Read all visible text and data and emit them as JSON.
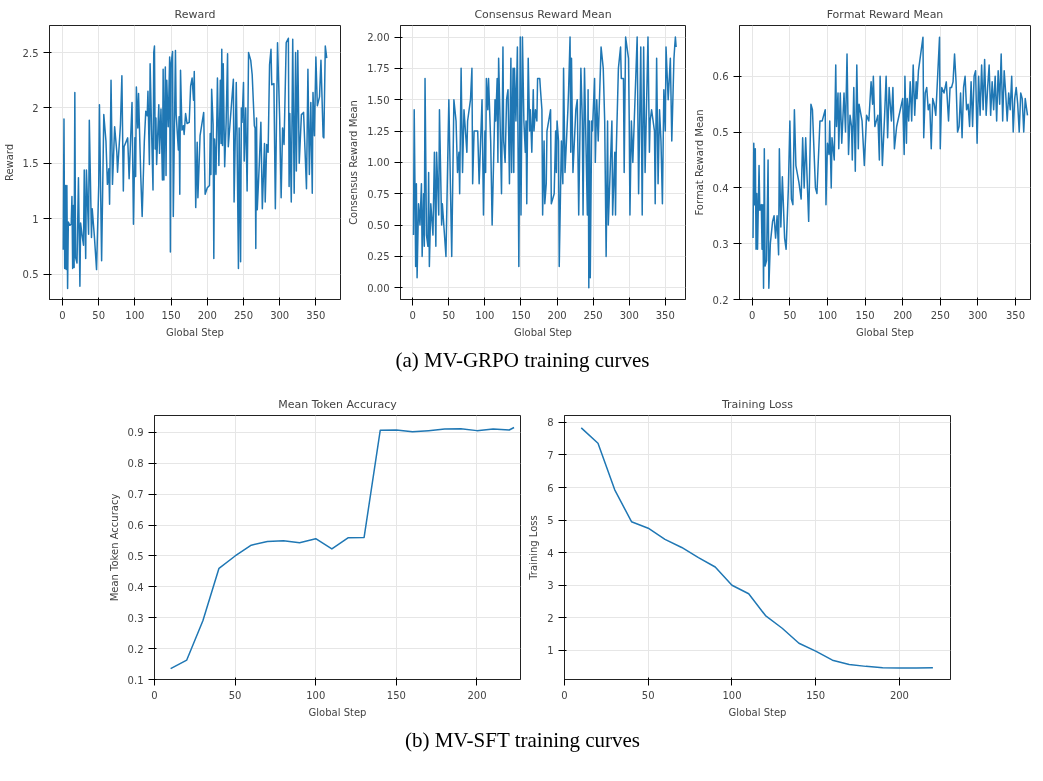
{
  "chart_data": [
    {
      "type": "line",
      "title": "Reward",
      "xlabel": "Global Step",
      "ylabel": "Reward",
      "grid": true,
      "xlim": [
        -18,
        384
      ],
      "ylim": [
        0.27,
        2.745
      ],
      "xticks": [
        0,
        50,
        100,
        150,
        200,
        250,
        300,
        350
      ],
      "yticks": [
        0.5,
        1.0,
        1.5,
        2.0,
        2.5
      ],
      "x": [
        1,
        2,
        3,
        4,
        5,
        6,
        7,
        8,
        10,
        12,
        13,
        14,
        15,
        16,
        17,
        18,
        20,
        22,
        24,
        25,
        27,
        29,
        30,
        32,
        33,
        36,
        37,
        40,
        41,
        44,
        47,
        50,
        51,
        54,
        57,
        60,
        62,
        64,
        65,
        67,
        69,
        72,
        75,
        76,
        80,
        82,
        84,
        85,
        90,
        92,
        96,
        98,
        100,
        101,
        102,
        104,
        105,
        108,
        110,
        113,
        115,
        117,
        118,
        120,
        121,
        123,
        125,
        126,
        127,
        128,
        129,
        130,
        133,
        134,
        136,
        138,
        139,
        140,
        142,
        143,
        144,
        146,
        148,
        149,
        150,
        152,
        153,
        156,
        157,
        160,
        161,
        162,
        163,
        165,
        167,
        168,
        170,
        172,
        175,
        177,
        179,
        181,
        182,
        184,
        186,
        187,
        190,
        195,
        197,
        200,
        203,
        204,
        205,
        206,
        208,
        209,
        210,
        212,
        214,
        216,
        218,
        219,
        220,
        221,
        222,
        224,
        226,
        228,
        229,
        233,
        236,
        237,
        240,
        241,
        243,
        244,
        246,
        247,
        248,
        250,
        251,
        253,
        255,
        257,
        260,
        262,
        265,
        266,
        267,
        268,
        269,
        272,
        274,
        276,
        279,
        280,
        282,
        284,
        286,
        288,
        289,
        292,
        294,
        297,
        300,
        302,
        304,
        306,
        309,
        312,
        313,
        314,
        316,
        318,
        320,
        322,
        323,
        325,
        327,
        330,
        333,
        337,
        339,
        341,
        343,
        345,
        346,
        348,
        350,
        352,
        355,
        357,
        360,
        361,
        363,
        365
      ],
      "series": [
        {
          "color": "#1f77b4",
          "values": [
            0.72,
            1.9,
            0.55,
            1.3,
            0.54,
            1.3,
            0.37,
            0.97,
            0.94,
            0.95,
            1.2,
            0.55,
            1.12,
            0.56,
            2.14,
            0.65,
            0.6,
            1.37,
            0.39,
            0.96,
            0.85,
            0.76,
            1.44,
            0.64,
            1.44,
            0.86,
            1.89,
            0.83,
            1.09,
            0.84,
            0.54,
            1.3,
            2.03,
            0.62,
            1.94,
            1.7,
            1.31,
            1.45,
            1.13,
            2.25,
            1.31,
            1.83,
            1.6,
            1.42,
            1.85,
            2.29,
            1.25,
            1.65,
            1.73,
            1.36,
            2.05,
            0.95,
            1.73,
            1.38,
            2.19,
            1.82,
            2.13,
            1.4,
            1.02,
            1.7,
            1.97,
            1.93,
            2.15,
            1.49,
            2.4,
            1.8,
            1.26,
            2.5,
            2.56,
            1.63,
            1.91,
            1.49,
            2.03,
            1.59,
            1.99,
            1.35,
            2.35,
            1.35,
            2.37,
            1.39,
            2.25,
            1.83,
            2.46,
            0.7,
            2.4,
            2.51,
            1.02,
            2.52,
            1.94,
            1.62,
            1.92,
            1.22,
            2.34,
            1.8,
            1.84,
            1.76,
            1.95,
            1.86,
            1.87,
            2.2,
            2.27,
            2.07,
            2.33,
            1.1,
            1.69,
            1.19,
            1.75,
            1.96,
            1.22,
            1.28,
            1.3,
            1.77,
            1.4,
            2.17,
            1.85,
            0.64,
            1.72,
            1.4,
            2.27,
            1.48,
            2.25,
            1.68,
            2.53,
            1.66,
            2.4,
            1.47,
            1.87,
            2.49,
            1.65,
            2.0,
            2.26,
            1.15,
            2.23,
            1.78,
            0.55,
            1.82,
            0.61,
            2.0,
            1.87,
            2.23,
            1.52,
            2.0,
            1.25,
            2.5,
            2.43,
            2.3,
            1.84,
            1.82,
            0.73,
            1.91,
            1.08,
            1.52,
            1.87,
            1.09,
            1.68,
            1.15,
            1.67,
            1.6,
            2.39,
            2.53,
            2.21,
            2.22,
            1.09,
            2.59,
            1.9,
            1.19,
            1.82,
            1.67,
            2.59,
            2.63,
            1.29,
            1.95,
            1.15,
            2.62,
            1.23,
            2.5,
            1.43,
            2.52,
            1.5,
            1.94,
            1.96,
            1.27,
            2.35,
            1.4,
            2.05,
            1.23,
            2.14,
            1.75,
            2.46,
            2.02,
            2.1,
            2.43,
            1.74,
            1.73,
            2.56,
            2.45
          ]
        }
      ]
    },
    {
      "type": "line",
      "title": "Consensus Reward Mean",
      "xlabel": "Global Step",
      "ylabel": "Consensus Reward Mean",
      "grid": true,
      "xlim": [
        -17,
        378
      ],
      "ylim": [
        -0.094,
        2.092
      ],
      "xticks": [
        0,
        50,
        100,
        150,
        200,
        250,
        300,
        350
      ],
      "yticks": [
        {
          "value": 0,
          "label": "0.00"
        },
        0.25,
        {
          "value": 0.5,
          "label": "0.50"
        },
        0.75,
        {
          "value": 1,
          "label": "1.00"
        },
        1.25,
        {
          "value": 1.5,
          "label": "1.50"
        },
        1.75,
        {
          "value": 2,
          "label": "2.00"
        }
      ],
      "annotations": [
        "(a) MV-GRPO training curves"
      ],
      "x": [
        1,
        2,
        3,
        4,
        5,
        6,
        8,
        10,
        12,
        13,
        15,
        16,
        17,
        19,
        21,
        22,
        23,
        25,
        28,
        30,
        32,
        33,
        36,
        37,
        40,
        41,
        46,
        50,
        54,
        57,
        60,
        62,
        64,
        65,
        67,
        69,
        71,
        75,
        76,
        80,
        82,
        83,
        85,
        90,
        92,
        96,
        98,
        100,
        101,
        102,
        104,
        105,
        108,
        110,
        114,
        115,
        117,
        118,
        119,
        121,
        123,
        125,
        126,
        128,
        130,
        132,
        134,
        136,
        137,
        139,
        140,
        141,
        143,
        145,
        147,
        149,
        150,
        152,
        154,
        156,
        157,
        158,
        160,
        162,
        163,
        165,
        167,
        168,
        170,
        172,
        173,
        176,
        177,
        179,
        180,
        182,
        183,
        185,
        186,
        191,
        192,
        196,
        198,
        199,
        200,
        202,
        203,
        206,
        208,
        209,
        211,
        215,
        216,
        218,
        219,
        220,
        222,
        226,
        228,
        230,
        233,
        235,
        236,
        238,
        242,
        243,
        244,
        245,
        246,
        248,
        249,
        252,
        253,
        255,
        257,
        261,
        264,
        266,
        268,
        270,
        271,
        274,
        276,
        277,
        280,
        281,
        282,
        285,
        288,
        289,
        292,
        293,
        295,
        299,
        300,
        301,
        303,
        305,
        308,
        311,
        313,
        316,
        318,
        320,
        322,
        326,
        328,
        329,
        331,
        335,
        336,
        338,
        340,
        342,
        344,
        346,
        348,
        350,
        351,
        354,
        357,
        359,
        362,
        363,
        364,
        365
      ],
      "series": [
        {
          "color": "#1f77b4",
          "values": [
            0.42,
            1.42,
            0.83,
            0.17,
            0.83,
            0.08,
            0.67,
            0.5,
            0.83,
            0.25,
            0.75,
            0.33,
            1.67,
            0.42,
            0.33,
            0.92,
            0.17,
            0.67,
            0.42,
            1.08,
            0.33,
            1.08,
            0.58,
            1.42,
            0.5,
            0.67,
            0.25,
            1.5,
            0.25,
            1.5,
            1.33,
            0.92,
            1.08,
            0.75,
            1.75,
            0.92,
            1.42,
            1.08,
            1.33,
            1.5,
            1.75,
            0.83,
            1.25,
            1.25,
            0.83,
            1.5,
            0.58,
            1.25,
            0.92,
            1.67,
            1.42,
            1.67,
            1.17,
            0.5,
            1.5,
            1.33,
            1.67,
            1.0,
            1.83,
            1.33,
            0.75,
            1.92,
            1.17,
            1.0,
            1.5,
            1.58,
            0.83,
            1.83,
            0.92,
            1.75,
            0.92,
            1.75,
            1.33,
            1.92,
            0.17,
            2.0,
            0.58,
            2.0,
            1.33,
            1.08,
            1.33,
            0.67,
            1.83,
            1.25,
            1.42,
            1.08,
            1.58,
            1.25,
            1.42,
            1.33,
            1.67,
            1.67,
            1.58,
            1.42,
            0.58,
            1.17,
            0.67,
            0.83,
            1.25,
            1.42,
            0.67,
            0.75,
            1.25,
            0.92,
            1.33,
            1.17,
            0.17,
            1.17,
            0.83,
            1.75,
            0.92,
            1.42,
            1.58,
            2.0,
            1.08,
            1.83,
            0.92,
            1.42,
            1.5,
            0.58,
            1.75,
            1.33,
            0.58,
            1.75,
            0.58,
            1.58,
            0.0,
            1.33,
            0.08,
            1.33,
            1.25,
            1.67,
            1.0,
            1.5,
            1.17,
            1.92,
            1.75,
            1.33,
            0.25,
            1.33,
            0.5,
            1.0,
            1.33,
            0.58,
            1.08,
            0.58,
            1.08,
            1.75,
            1.92,
            1.67,
            1.67,
            0.92,
            2.0,
            1.83,
            1.33,
            0.58,
            1.33,
            1.0,
            1.5,
            2.0,
            0.75,
            1.92,
            0.58,
            1.92,
            0.92,
            2.0,
            1.08,
            1.33,
            1.42,
            1.25,
            0.67,
            1.83,
            0.83,
            1.42,
            1.17,
            0.67,
            1.58,
            1.25,
            1.92,
            1.5,
            1.83,
            1.17,
            1.83,
            1.92,
            2.0,
            1.92
          ]
        }
      ]
    },
    {
      "type": "line",
      "title": "Format Reward Mean",
      "xlabel": "Global Step",
      "ylabel": "Format Reward Mean",
      "grid": true,
      "xlim": [
        -17,
        370
      ],
      "ylim": [
        0.2,
        0.691
      ],
      "xticks": [
        0,
        50,
        100,
        150,
        200,
        250,
        300,
        350
      ],
      "yticks": [
        0.2,
        0.3,
        0.4,
        0.5,
        0.6
      ],
      "x": [
        1,
        2,
        3,
        4,
        5,
        6,
        7,
        9,
        10,
        12,
        13,
        14,
        15,
        16,
        17,
        19,
        21,
        22,
        24,
        27,
        29,
        31,
        33,
        35,
        36,
        38,
        40,
        43,
        45,
        48,
        50,
        52,
        54,
        56,
        58,
        62,
        65,
        67,
        69,
        71,
        75,
        78,
        80,
        84,
        86,
        90,
        93,
        97,
        98,
        100,
        102,
        103,
        105,
        106,
        109,
        111,
        112,
        114,
        115,
        117,
        119,
        122,
        124,
        126,
        128,
        130,
        132,
        133,
        135,
        137,
        139,
        141,
        142,
        146,
        149,
        152,
        155,
        158,
        160,
        161,
        163,
        167,
        169,
        170,
        173,
        176,
        178,
        180,
        182,
        185,
        187,
        189,
        192,
        200,
        202,
        203,
        205,
        206,
        208,
        210,
        212,
        214,
        216,
        218,
        219,
        221,
        227,
        228,
        230,
        232,
        234,
        236,
        238,
        240,
        242,
        244,
        249,
        250,
        252,
        255,
        258,
        261,
        263,
        265,
        267,
        269,
        271,
        273,
        275,
        277,
        279,
        281,
        283,
        285,
        287,
        289,
        291,
        293,
        295,
        297,
        299,
        301,
        303,
        305,
        307,
        309,
        311,
        313,
        315,
        317,
        319,
        321,
        323,
        325,
        327,
        329,
        331,
        333,
        335,
        337,
        339,
        341,
        343,
        345,
        347,
        349,
        351,
        353,
        355,
        357,
        359,
        361,
        363,
        366
      ],
      "series": [
        {
          "color": "#1f77b4",
          "values": [
            0.31,
            0.48,
            0.37,
            0.47,
            0.29,
            0.39,
            0.29,
            0.44,
            0.36,
            0.37,
            0.29,
            0.37,
            0.22,
            0.47,
            0.26,
            0.27,
            0.45,
            0.22,
            0.3,
            0.34,
            0.35,
            0.31,
            0.35,
            0.28,
            0.47,
            0.33,
            0.42,
            0.31,
            0.29,
            0.4,
            0.52,
            0.38,
            0.37,
            0.54,
            0.44,
            0.41,
            0.38,
            0.49,
            0.4,
            0.49,
            0.34,
            0.55,
            0.54,
            0.4,
            0.39,
            0.52,
            0.52,
            0.54,
            0.37,
            0.48,
            0.46,
            0.52,
            0.4,
            0.49,
            0.45,
            0.62,
            0.51,
            0.57,
            0.47,
            0.57,
            0.48,
            0.57,
            0.5,
            0.64,
            0.46,
            0.53,
            0.51,
            0.45,
            0.58,
            0.43,
            0.62,
            0.47,
            0.55,
            0.52,
            0.44,
            0.53,
            0.52,
            0.59,
            0.55,
            0.6,
            0.51,
            0.53,
            0.45,
            0.6,
            0.44,
            0.53,
            0.6,
            0.49,
            0.58,
            0.52,
            0.58,
            0.47,
            0.51,
            0.56,
            0.46,
            0.6,
            0.48,
            0.56,
            0.52,
            0.59,
            0.52,
            0.62,
            0.53,
            0.59,
            0.56,
            0.61,
            0.67,
            0.49,
            0.57,
            0.58,
            0.54,
            0.55,
            0.47,
            0.56,
            0.55,
            0.53,
            0.67,
            0.47,
            0.58,
            0.57,
            0.59,
            0.52,
            0.58,
            0.58,
            0.59,
            0.64,
            0.59,
            0.5,
            0.51,
            0.57,
            0.49,
            0.58,
            0.6,
            0.54,
            0.55,
            0.51,
            0.59,
            0.51,
            0.6,
            0.61,
            0.48,
            0.6,
            0.53,
            0.62,
            0.54,
            0.63,
            0.53,
            0.58,
            0.62,
            0.53,
            0.59,
            0.54,
            0.6,
            0.52,
            0.61,
            0.55,
            0.64,
            0.52,
            0.61,
            0.57,
            0.52,
            0.57,
            0.54,
            0.6,
            0.5,
            0.56,
            0.58,
            0.55,
            0.5,
            0.57,
            0.56,
            0.5,
            0.56,
            0.53
          ]
        }
      ]
    },
    {
      "type": "line",
      "title": "Mean Token Accuracy",
      "xlabel": "Global Step",
      "ylabel": "Mean Token Accuracy",
      "grid": true,
      "xlim": [
        0,
        227
      ],
      "ylim": [
        0.1,
        0.955
      ],
      "xticks": [
        0,
        50,
        100,
        150,
        200
      ],
      "yticks": [
        0.1,
        0.2,
        0.3,
        0.4,
        0.5,
        0.6,
        0.7,
        0.8,
        0.9
      ],
      "x": [
        10,
        20,
        30,
        40,
        50,
        60,
        70,
        80,
        90,
        100,
        110,
        120,
        130,
        140,
        150,
        160,
        170,
        180,
        190,
        200,
        210,
        220,
        223
      ],
      "series": [
        {
          "color": "#1f77b4",
          "values": [
            0.135,
            0.163,
            0.29,
            0.46,
            0.5,
            0.535,
            0.547,
            0.549,
            0.543,
            0.556,
            0.523,
            0.559,
            0.56,
            0.907,
            0.908,
            0.902,
            0.906,
            0.911,
            0.912,
            0.906,
            0.911,
            0.908,
            0.916
          ]
        }
      ]
    },
    {
      "type": "line",
      "title": "Training Loss",
      "xlabel": "Global Step",
      "ylabel": "Training Loss",
      "grid": true,
      "xlim": [
        0,
        230.5
      ],
      "ylim": [
        0.107,
        8.21
      ],
      "xticks": [
        0,
        50,
        100,
        150,
        200
      ],
      "yticks": [
        1,
        2,
        3,
        4,
        5,
        6,
        7,
        8
      ],
      "annotations": [
        "(b) MV-SFT training curves"
      ],
      "x": [
        10,
        20,
        30,
        40,
        50,
        60,
        70,
        80,
        90,
        100,
        110,
        120,
        130,
        140,
        150,
        160,
        170,
        180,
        190,
        200,
        210,
        220
      ],
      "series": [
        {
          "color": "#1f77b4",
          "values": [
            7.83,
            7.36,
            5.93,
            4.95,
            4.75,
            4.41,
            4.16,
            3.85,
            3.56,
            3.0,
            2.74,
            2.07,
            1.68,
            1.22,
            0.98,
            0.7,
            0.57,
            0.51,
            0.47,
            0.46,
            0.46,
            0.47
          ]
        }
      ]
    }
  ]
}
